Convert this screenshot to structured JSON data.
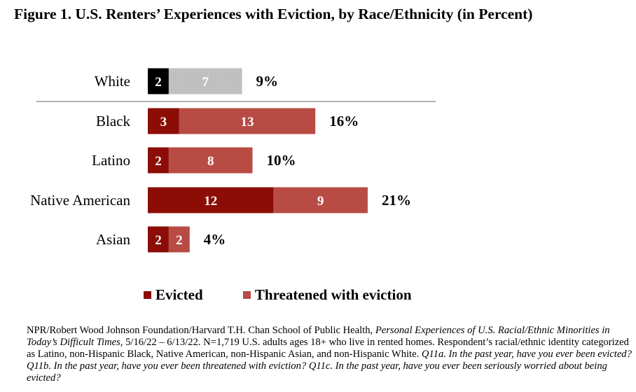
{
  "chart_data": {
    "type": "bar",
    "orientation": "horizontal",
    "stacked": true,
    "title": "Figure 1. U.S. Renters’ Experiences with Eviction, by Race/Ethnicity (in Percent)",
    "categories": [
      "White",
      "Black",
      "Latino",
      "Native American",
      "Asian"
    ],
    "series": [
      {
        "name": "Evicted",
        "values": [
          2,
          3,
          2,
          12,
          2
        ]
      },
      {
        "name": "Threatened with eviction",
        "values": [
          7,
          13,
          8,
          9,
          2
        ]
      }
    ],
    "totals": [
      "9%",
      "16%",
      "10%",
      "21%",
      "4%"
    ],
    "colors": {
      "evicted": "#8b0d05",
      "threatened": "#b84c44",
      "white_evicted": "#000000",
      "white_threatened": "#bdbdbd",
      "separator": "#999999"
    },
    "xlim": [
      0,
      22
    ],
    "grid": false,
    "legend_position": "bottom"
  },
  "legend": {
    "evicted": "Evicted",
    "threatened": "Threatened with eviction"
  },
  "source": {
    "part1": "NPR/Robert Wood Johnson Foundation/Harvard T.H. Chan School of Public Health, ",
    "part2": "Personal Experiences of U.S. Racial/Ethnic Minorities in Today’s Difficult Times,",
    "part3": " 5/16/22 – 6/13/22. N=1,719 U.S. adults ages 18+ who live in rented homes. Respondent’s racial/ethnic identity categorized as Latino, non-Hispanic Black, Native American, non-Hispanic Asian, and non-Hispanic White. ",
    "part4": "Q11a. In the past year, have you ever been evicted? Q11b. In the past year, have you ever been threatened with eviction? Q11c. In the past year, have you ever been seriously worried about being evicted?"
  }
}
